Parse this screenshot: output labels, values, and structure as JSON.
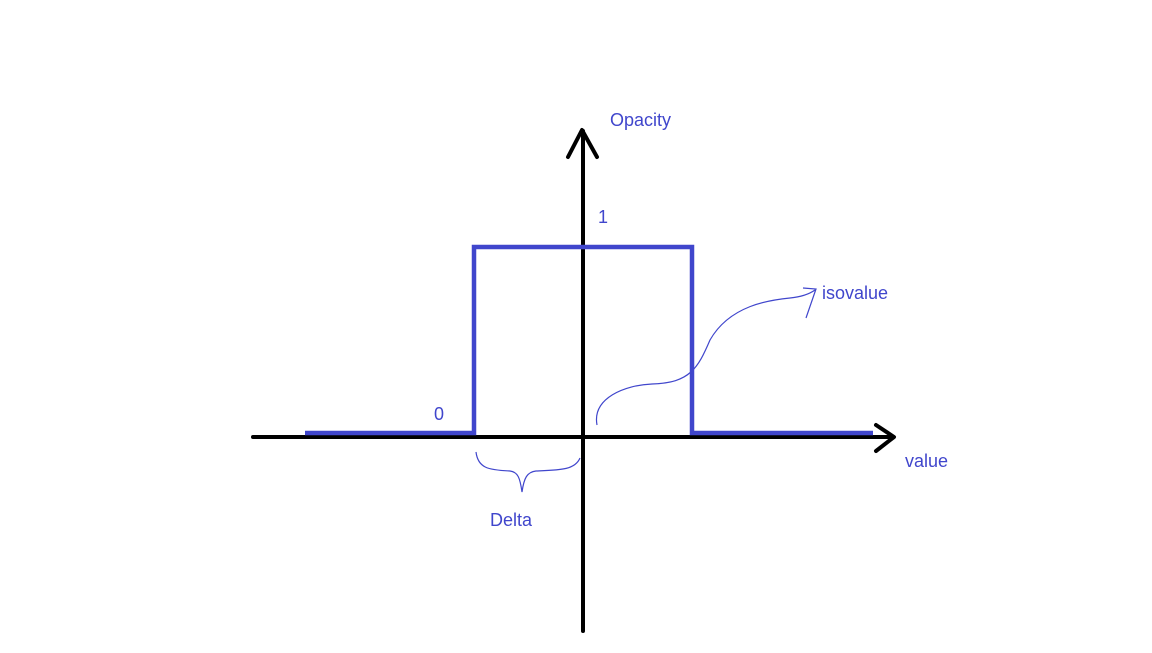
{
  "colors": {
    "axis": "#000000",
    "curve": "#4046cc",
    "annotation": "#3f46c8"
  },
  "labels": {
    "y_axis": "Opacity",
    "x_axis": "value",
    "level_one": "1",
    "level_zero": "0",
    "isovalue": "isovalue",
    "delta": "Delta"
  }
}
